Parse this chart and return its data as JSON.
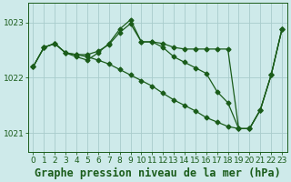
{
  "title": "Graphe pression niveau de la mer (hPa)",
  "bg_color": "#ceeaea",
  "grid_color": "#a8cccc",
  "line_color": "#1a5c1a",
  "xlim_min": -0.5,
  "xlim_max": 23.5,
  "ylim_min": 1020.65,
  "ylim_max": 1023.35,
  "yticks": [
    1021,
    1022,
    1023
  ],
  "xticks": [
    0,
    1,
    2,
    3,
    4,
    5,
    6,
    7,
    8,
    9,
    10,
    11,
    12,
    13,
    14,
    15,
    16,
    17,
    18,
    19,
    20,
    21,
    22,
    23
  ],
  "series1_x": [
    0,
    1,
    2,
    3,
    4,
    5,
    6,
    7,
    8,
    9,
    10,
    11,
    12,
    13,
    14,
    15,
    16,
    17,
    18,
    19,
    20,
    21,
    22,
    23
  ],
  "series1_y": [
    1022.2,
    1022.55,
    1022.62,
    1022.45,
    1022.42,
    1022.42,
    1022.48,
    1022.6,
    1022.82,
    1022.98,
    1022.65,
    1022.65,
    1022.62,
    1022.55,
    1022.52,
    1022.52,
    1022.52,
    1022.52,
    1022.52,
    1021.08,
    1021.08,
    1021.42,
    1022.05,
    1022.88
  ],
  "series2_x": [
    0,
    1,
    2,
    3,
    4,
    5,
    6,
    7,
    8,
    9,
    10,
    11,
    12,
    13,
    14,
    15,
    16,
    17,
    18,
    19,
    20,
    21,
    22,
    23
  ],
  "series2_y": [
    1022.2,
    1022.55,
    1022.62,
    1022.45,
    1022.42,
    1022.38,
    1022.32,
    1022.25,
    1022.15,
    1022.05,
    1021.95,
    1021.85,
    1021.72,
    1021.6,
    1021.5,
    1021.4,
    1021.28,
    1021.2,
    1021.12,
    1021.08,
    1021.08,
    1021.42,
    1022.05,
    1022.88
  ],
  "series3_x": [
    0,
    1,
    2,
    3,
    4,
    5,
    6,
    7,
    8,
    9,
    10,
    11,
    12,
    13,
    14,
    15,
    16,
    17,
    18,
    19,
    20,
    21,
    22,
    23
  ],
  "series3_y": [
    1022.2,
    1022.55,
    1022.62,
    1022.45,
    1022.38,
    1022.32,
    1022.45,
    1022.62,
    1022.88,
    1023.05,
    1022.65,
    1022.65,
    1022.55,
    1022.38,
    1022.28,
    1022.18,
    1022.08,
    1021.75,
    1021.55,
    1021.08,
    1021.08,
    1021.42,
    1022.05,
    1022.88
  ],
  "tick_fontsize": 6.5,
  "xlabel_fontsize": 8.5
}
